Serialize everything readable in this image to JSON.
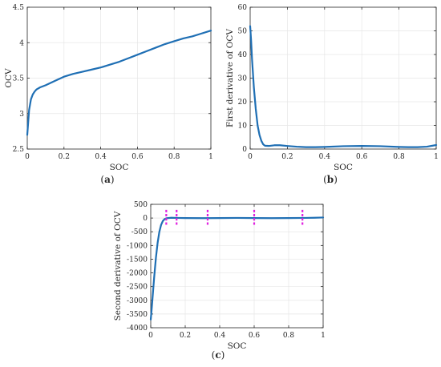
{
  "chart_data": [
    {
      "panel_id": "a",
      "type": "line",
      "caption": "(a)",
      "xlabel": "SOC",
      "ylabel": "OCV",
      "xlim": [
        0,
        1
      ],
      "ylim": [
        2.5,
        4.5
      ],
      "xticks": [
        0,
        0.2,
        0.4,
        0.6,
        0.8,
        1
      ],
      "xtick_labels": [
        "0",
        "0.2",
        "0.4",
        "0.6",
        "0.8",
        "1"
      ],
      "yticks": [
        2.5,
        3,
        3.5,
        4,
        4.5
      ],
      "ytick_labels": [
        "2.5",
        "3",
        "3.5",
        "4",
        "4.5"
      ],
      "grid": true,
      "line_color": "#1f6fb4",
      "series": [
        {
          "x": [
            0,
            0.01,
            0.02,
            0.03,
            0.04,
            0.05,
            0.07,
            0.1,
            0.15,
            0.2,
            0.25,
            0.3,
            0.35,
            0.4,
            0.45,
            0.5,
            0.55,
            0.6,
            0.65,
            0.7,
            0.75,
            0.8,
            0.85,
            0.9,
            0.95,
            1.0
          ],
          "y": [
            2.7,
            3.05,
            3.2,
            3.27,
            3.31,
            3.34,
            3.37,
            3.4,
            3.46,
            3.52,
            3.56,
            3.59,
            3.62,
            3.65,
            3.69,
            3.73,
            3.78,
            3.83,
            3.88,
            3.93,
            3.98,
            4.02,
            4.06,
            4.09,
            4.13,
            4.17
          ]
        }
      ]
    },
    {
      "panel_id": "b",
      "type": "line",
      "caption": "(b)",
      "xlabel": "SOC",
      "ylabel": "First derivative of OCV",
      "xlim": [
        0,
        1
      ],
      "ylim": [
        0,
        60
      ],
      "xticks": [
        0,
        0.2,
        0.4,
        0.6,
        0.8,
        1
      ],
      "xtick_labels": [
        "0",
        "0.2",
        "0.4",
        "0.6",
        "0.8",
        "1"
      ],
      "yticks": [
        0,
        10,
        20,
        30,
        40,
        50,
        60
      ],
      "ytick_labels": [
        "0",
        "10",
        "20",
        "30",
        "40",
        "50",
        "60"
      ],
      "grid": true,
      "line_color": "#1f6fb4",
      "series": [
        {
          "x": [
            0,
            0.005,
            0.01,
            0.02,
            0.03,
            0.04,
            0.05,
            0.06,
            0.07,
            0.08,
            0.1,
            0.13,
            0.16,
            0.2,
            0.25,
            0.3,
            0.35,
            0.4,
            0.5,
            0.6,
            0.7,
            0.8,
            0.85,
            0.9,
            0.95,
            1.0
          ],
          "y": [
            52,
            46,
            38,
            26,
            17,
            10,
            6,
            3.5,
            2,
            1.4,
            1.3,
            1.6,
            1.6,
            1.3,
            1.0,
            0.8,
            0.8,
            0.9,
            1.2,
            1.3,
            1.2,
            0.9,
            0.8,
            0.8,
            1.0,
            1.7
          ]
        }
      ]
    },
    {
      "panel_id": "c",
      "type": "line",
      "caption": "(c)",
      "xlabel": "SOC",
      "ylabel": "Second derivative of OCV",
      "xlim": [
        0,
        1
      ],
      "ylim": [
        -4000,
        500
      ],
      "xticks": [
        0,
        0.2,
        0.4,
        0.6,
        0.8,
        1
      ],
      "xtick_labels": [
        "0",
        "0.2",
        "0.4",
        "0.6",
        "0.8",
        "1"
      ],
      "yticks": [
        -4000,
        -3500,
        -3000,
        -2500,
        -2000,
        -1500,
        -1000,
        -500,
        0,
        500
      ],
      "ytick_labels": [
        "-4000",
        "-3500",
        "-3000",
        "-2500",
        "-2000",
        "-1500",
        "-1000",
        "-500",
        "0",
        "500"
      ],
      "grid": true,
      "line_color": "#1f6fb4",
      "marker_color": "#e020e0",
      "markers_x": [
        0.09,
        0.15,
        0.33,
        0.6,
        0.88
      ],
      "marker_range": [
        -300,
        300
      ],
      "series": [
        {
          "x": [
            0,
            0.005,
            0.01,
            0.02,
            0.03,
            0.04,
            0.05,
            0.06,
            0.07,
            0.08,
            0.09,
            0.1,
            0.12,
            0.15,
            0.2,
            0.3,
            0.4,
            0.5,
            0.6,
            0.7,
            0.8,
            0.9,
            0.95,
            1.0
          ],
          "y": [
            -3700,
            -3350,
            -2950,
            -2150,
            -1450,
            -900,
            -500,
            -250,
            -110,
            -40,
            -10,
            0,
            10,
            5,
            0,
            -5,
            0,
            5,
            0,
            -5,
            0,
            5,
            10,
            20
          ]
        }
      ]
    }
  ]
}
